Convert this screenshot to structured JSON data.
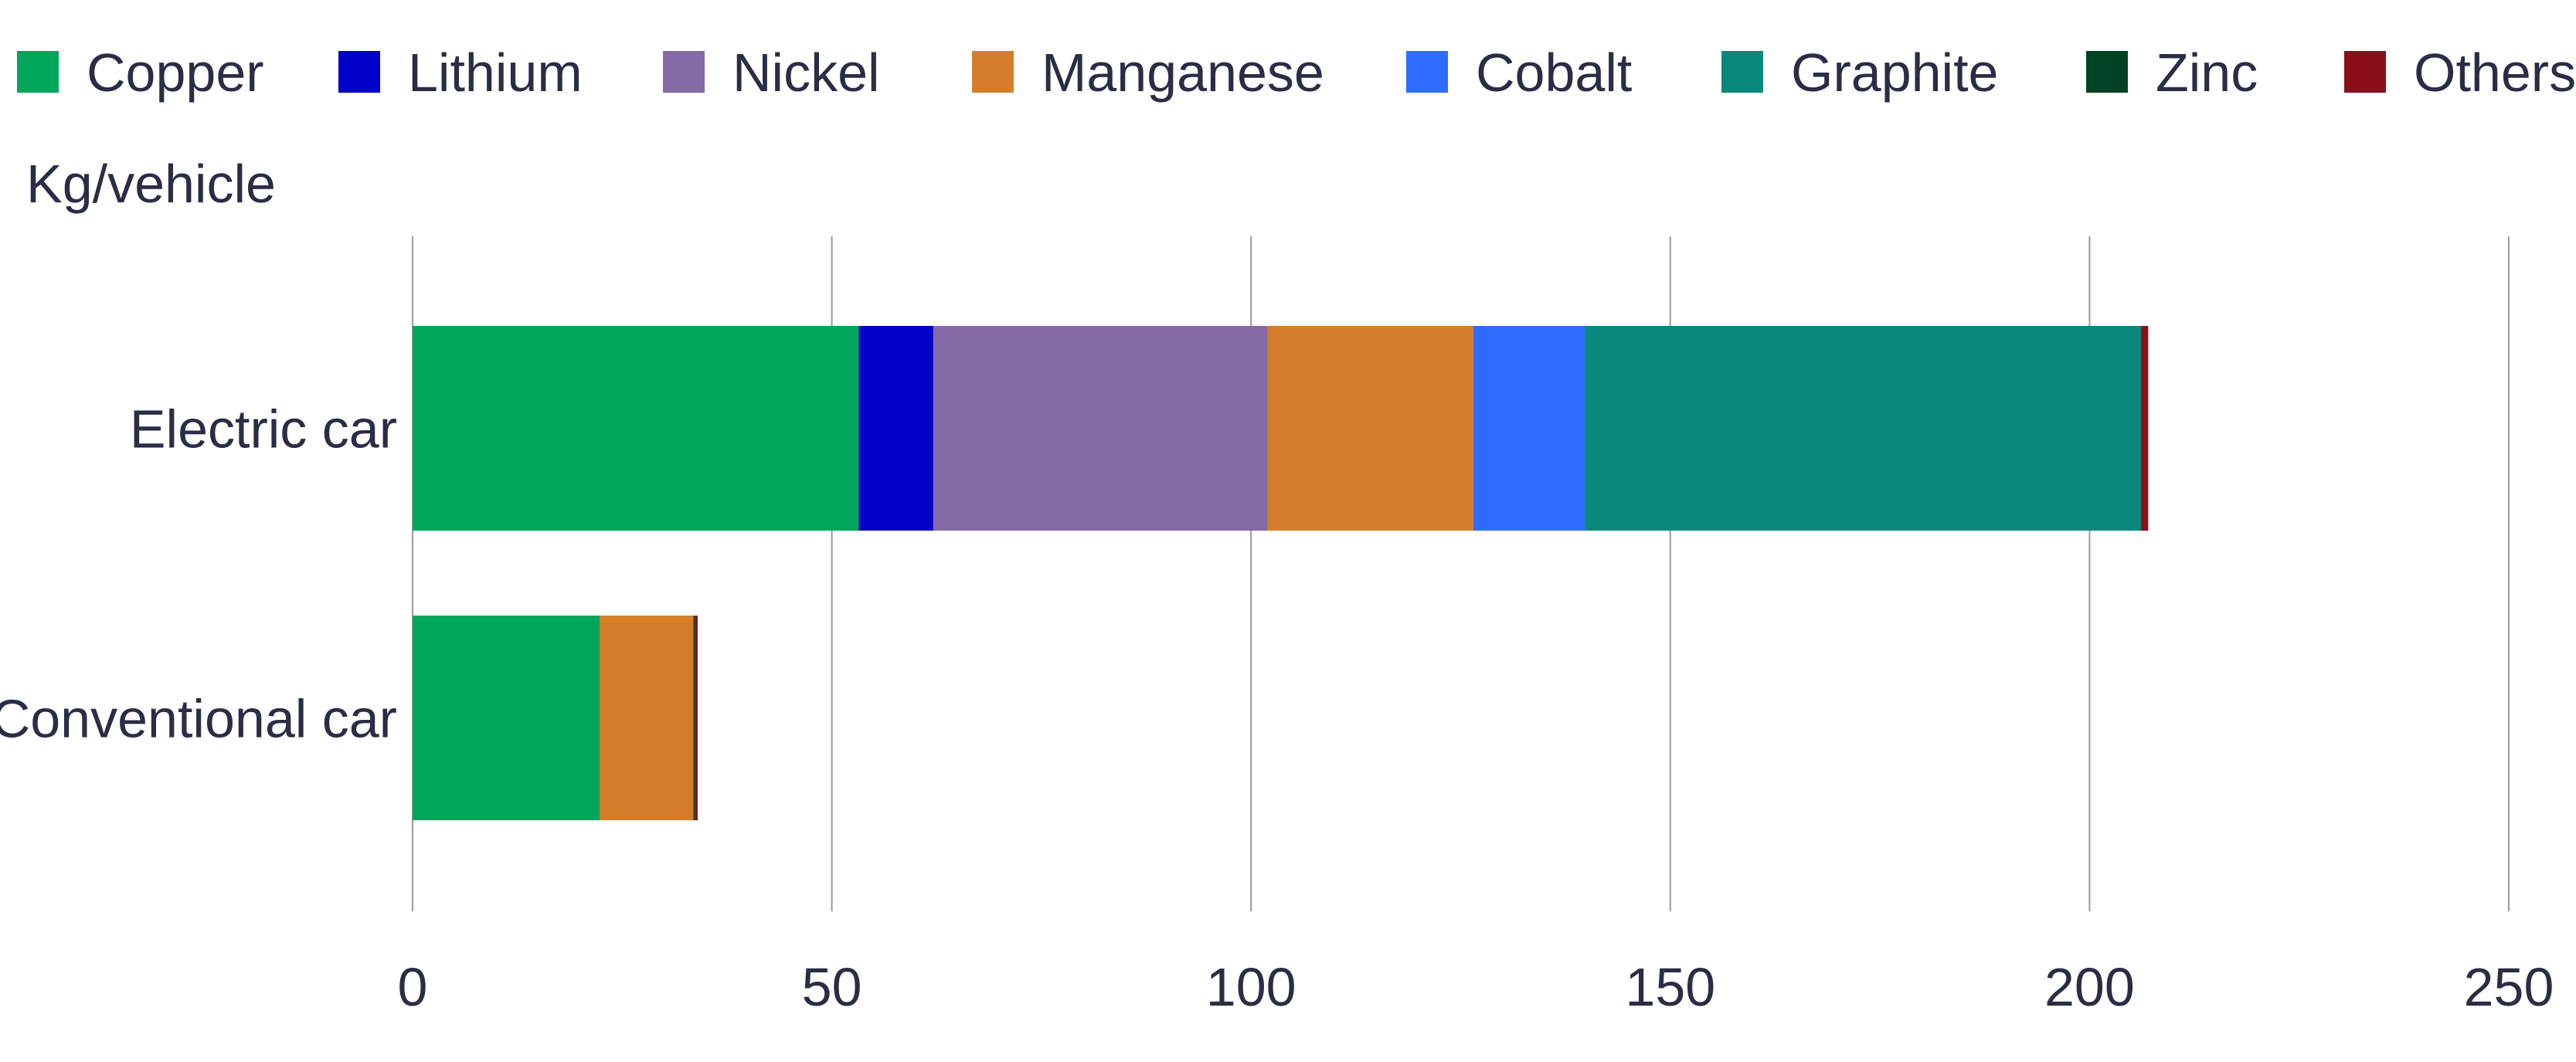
{
  "chart_data": {
    "type": "bar",
    "orientation": "horizontal",
    "stacked": true,
    "ylabel": "Kg/vehicle",
    "categories": [
      "Electric car",
      "Conventional car"
    ],
    "series": [
      {
        "name": "Copper",
        "color": "#00a65a",
        "values": [
          53.2,
          22.3
        ]
      },
      {
        "name": "Lithium",
        "color": "#0000c8",
        "values": [
          8.9,
          0
        ]
      },
      {
        "name": "Nickel",
        "color": "#846aa6",
        "values": [
          39.9,
          0
        ]
      },
      {
        "name": "Manganese",
        "color": "#d67d29",
        "values": [
          24.5,
          11.2
        ]
      },
      {
        "name": "Cobalt",
        "color": "#2f6bff",
        "values": [
          13.3,
          0
        ]
      },
      {
        "name": "Graphite",
        "color": "#0b887c",
        "values": [
          66.3,
          0
        ]
      },
      {
        "name": "Zinc",
        "color": "#004225",
        "values": [
          0.1,
          0.2
        ]
      },
      {
        "name": "Others",
        "color": "#8a0f1b",
        "values": [
          0.8,
          0.3
        ]
      }
    ],
    "xlim": [
      0,
      250
    ],
    "xticks": [
      0,
      50,
      100,
      150,
      200,
      250
    ],
    "grid": "vertical",
    "legend_position": "top"
  }
}
